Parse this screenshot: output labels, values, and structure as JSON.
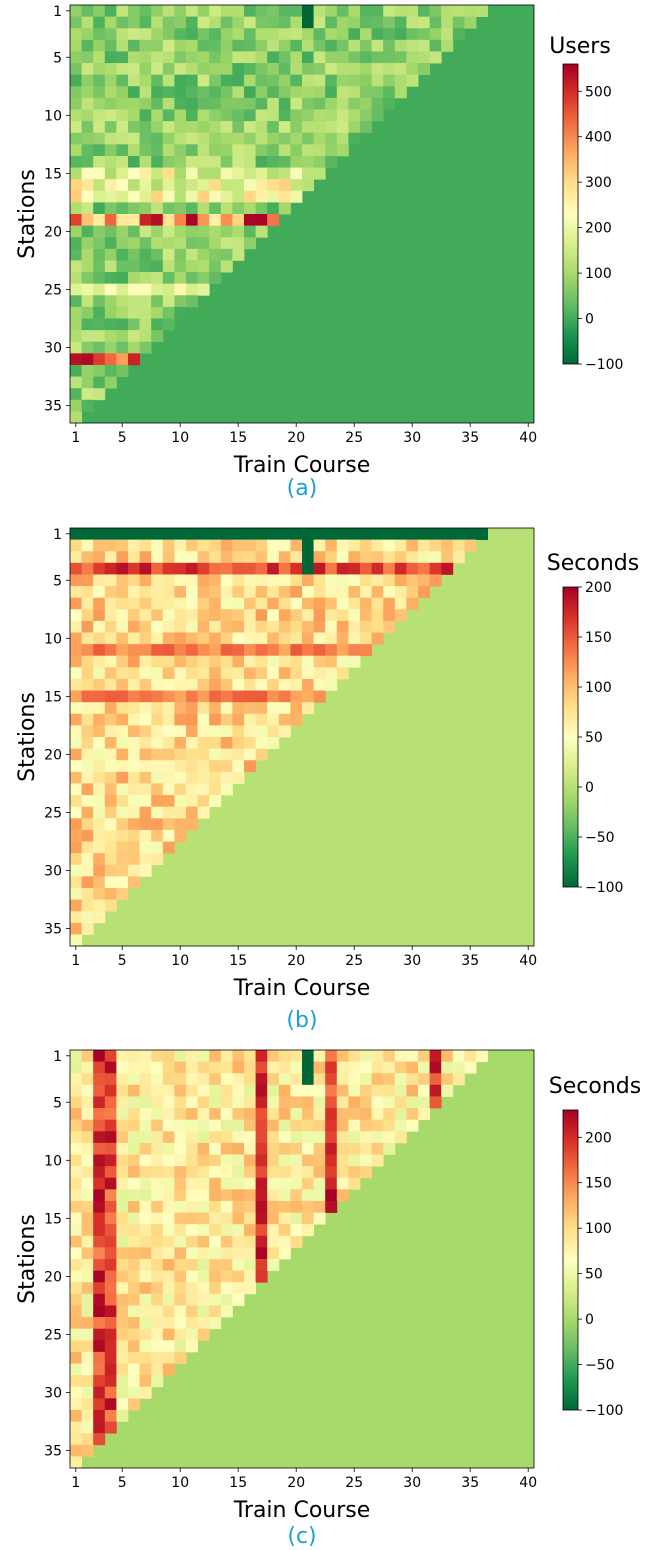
{
  "chart_data": [
    {
      "type": "heatmap",
      "panel_label": "(a)",
      "xlabel": "Train Course",
      "ylabel": "Stations",
      "colorbar_label": "Users",
      "x_range": [
        1,
        40
      ],
      "y_range": [
        1,
        36
      ],
      "x_ticks": [
        1,
        5,
        10,
        15,
        20,
        25,
        30,
        35,
        40
      ],
      "y_ticks": [
        1,
        5,
        10,
        15,
        20,
        25,
        30,
        35
      ],
      "color_range": [
        -100,
        560
      ],
      "colorbar_ticks": [
        -100,
        0,
        100,
        200,
        300,
        400,
        500
      ],
      "colormap": "RdYlGn_r",
      "fill_value": 0,
      "boundary": "course c has values for stations 1..(37-c); other cells equal fill_value",
      "typical_value_range": [
        0,
        150
      ],
      "highlights": [
        {
          "description": "column 21, stations 1-2",
          "value": -100
        },
        {
          "description": "station 19 row",
          "values_range": [
            250,
            560
          ]
        },
        {
          "description": "station 31 row",
          "values_range": [
            350,
            560
          ]
        },
        {
          "description": "station 25 row",
          "values_range": [
            150,
            250
          ]
        },
        {
          "description": "station 15-17 rows",
          "values_range": [
            100,
            320
          ]
        }
      ]
    },
    {
      "type": "heatmap",
      "panel_label": "(b)",
      "xlabel": "Train Course",
      "ylabel": "Stations",
      "colorbar_label": "Seconds",
      "x_range": [
        1,
        40
      ],
      "y_range": [
        1,
        36
      ],
      "x_ticks": [
        1,
        5,
        10,
        15,
        20,
        25,
        30,
        35,
        40
      ],
      "y_ticks": [
        1,
        5,
        10,
        15,
        20,
        25,
        30,
        35
      ],
      "color_range": [
        -100,
        200
      ],
      "colorbar_ticks": [
        -100,
        -50,
        0,
        50,
        100,
        150,
        200
      ],
      "colormap": "RdYlGn_r",
      "fill_value": 0,
      "boundary": "course c has values for stations 1..(37-c); other cells equal fill_value",
      "typical_value_range": [
        40,
        120
      ],
      "highlights": [
        {
          "description": "station 1 row",
          "value": -100
        },
        {
          "description": "column 21, stations 1-4",
          "value": -100
        },
        {
          "description": "station 4 row",
          "values_range": [
            130,
            190
          ]
        },
        {
          "description": "station 11 and 15 rows",
          "values_range": [
            110,
            150
          ]
        }
      ]
    },
    {
      "type": "heatmap",
      "panel_label": "(c)",
      "xlabel": "Train Course",
      "ylabel": "Stations",
      "colorbar_label": "Seconds",
      "x_range": [
        1,
        40
      ],
      "y_range": [
        1,
        36
      ],
      "x_ticks": [
        1,
        5,
        10,
        15,
        20,
        25,
        30,
        35,
        40
      ],
      "y_ticks": [
        1,
        5,
        10,
        15,
        20,
        25,
        30,
        35
      ],
      "color_range": [
        -100,
        230
      ],
      "colorbar_ticks": [
        -100,
        -50,
        0,
        50,
        100,
        150,
        200
      ],
      "colormap": "RdYlGn_r",
      "fill_value": 0,
      "boundary": "course c has values for stations 1..(37-c); other cells equal fill_value",
      "typical_value_range": [
        40,
        130
      ],
      "highlights": [
        {
          "description": "column 21, stations 1-3",
          "value": -100
        },
        {
          "description": "columns 3, 4, 17, 23, 32 form high vertical bands",
          "values_range": [
            150,
            230
          ]
        }
      ]
    }
  ]
}
